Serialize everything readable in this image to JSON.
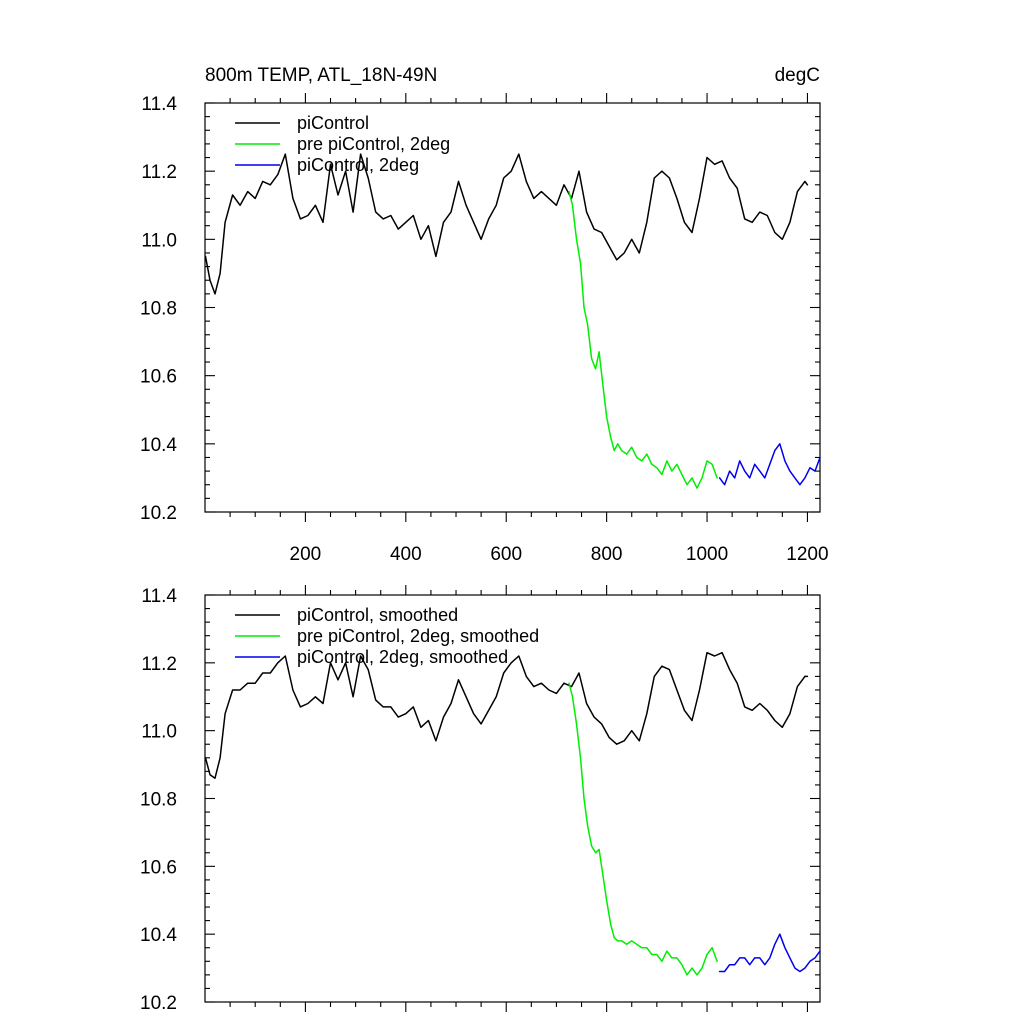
{
  "chart_data": [
    {
      "type": "line",
      "title": "800m TEMP, ATL_18N-49N",
      "units": "degC",
      "xlim": [
        0,
        1225
      ],
      "ylim": [
        10.2,
        11.4
      ],
      "x_ticks": [
        200,
        400,
        600,
        800,
        1000,
        1200
      ],
      "x_tick_labels": [
        "200",
        "400",
        "600",
        "800",
        "1000",
        "1200"
      ],
      "y_ticks": [
        10.2,
        10.4,
        10.6,
        10.8,
        11.0,
        11.2,
        11.4
      ],
      "y_tick_labels": [
        "10.2",
        "10.4",
        "10.6",
        "10.8",
        "11.0",
        "11.2",
        "11.4"
      ],
      "legend_position": "top-left",
      "grid": false,
      "series": [
        {
          "name": "piControl",
          "color": "#000000",
          "x": [
            1,
            10,
            20,
            30,
            40,
            55,
            70,
            85,
            100,
            115,
            130,
            145,
            160,
            175,
            190,
            205,
            220,
            235,
            250,
            265,
            280,
            295,
            310,
            325,
            340,
            355,
            370,
            385,
            400,
            415,
            430,
            445,
            460,
            475,
            490,
            505,
            520,
            535,
            550,
            565,
            580,
            595,
            610,
            625,
            640,
            655,
            670,
            685,
            700,
            715,
            730,
            745,
            760,
            775,
            790,
            805,
            820,
            835,
            850,
            865,
            880,
            895,
            910,
            925,
            940,
            955,
            970,
            985,
            1000,
            1015,
            1030,
            1045,
            1060,
            1075,
            1090,
            1105,
            1120,
            1135,
            1150,
            1165,
            1180,
            1195,
            1200
          ],
          "y": [
            10.95,
            10.88,
            10.84,
            10.9,
            11.05,
            11.13,
            11.1,
            11.14,
            11.12,
            11.17,
            11.16,
            11.19,
            11.25,
            11.12,
            11.06,
            11.07,
            11.1,
            11.05,
            11.22,
            11.13,
            11.2,
            11.08,
            11.25,
            11.18,
            11.08,
            11.06,
            11.07,
            11.03,
            11.05,
            11.07,
            11.0,
            11.04,
            10.95,
            11.05,
            11.08,
            11.17,
            11.1,
            11.05,
            11.0,
            11.06,
            11.1,
            11.18,
            11.2,
            11.25,
            11.17,
            11.12,
            11.14,
            11.12,
            11.1,
            11.16,
            11.12,
            11.2,
            11.08,
            11.03,
            11.02,
            10.98,
            10.94,
            10.96,
            11.0,
            10.96,
            11.05,
            11.18,
            11.2,
            11.18,
            11.12,
            11.05,
            11.02,
            11.12,
            11.24,
            11.22,
            11.23,
            11.18,
            11.15,
            11.06,
            11.05,
            11.08,
            11.07,
            11.02,
            11.0,
            11.05,
            11.14,
            11.17,
            11.16
          ]
        },
        {
          "name": "pre piControl, 2deg",
          "color": "#00ee00",
          "x": [
            725,
            732,
            740,
            748,
            755,
            762,
            770,
            778,
            785,
            792,
            800,
            808,
            815,
            822,
            830,
            840,
            850,
            860,
            870,
            880,
            890,
            900,
            910,
            920,
            930,
            940,
            950,
            960,
            970,
            980,
            990,
            1000,
            1010,
            1020
          ],
          "y": [
            11.14,
            11.1,
            11.0,
            10.93,
            10.8,
            10.75,
            10.65,
            10.62,
            10.67,
            10.58,
            10.48,
            10.42,
            10.38,
            10.4,
            10.38,
            10.37,
            10.39,
            10.36,
            10.35,
            10.37,
            10.34,
            10.33,
            10.31,
            10.35,
            10.32,
            10.34,
            10.31,
            10.28,
            10.3,
            10.27,
            10.3,
            10.35,
            10.34,
            10.3
          ]
        },
        {
          "name": "piControl, 2deg",
          "color": "#0000ee",
          "x": [
            1025,
            1035,
            1045,
            1055,
            1065,
            1075,
            1085,
            1095,
            1105,
            1115,
            1125,
            1135,
            1145,
            1155,
            1165,
            1175,
            1185,
            1195,
            1205,
            1215,
            1225
          ],
          "y": [
            10.3,
            10.28,
            10.32,
            10.3,
            10.35,
            10.32,
            10.3,
            10.34,
            10.32,
            10.3,
            10.34,
            10.38,
            10.4,
            10.35,
            10.32,
            10.3,
            10.28,
            10.3,
            10.33,
            10.32,
            10.36
          ]
        }
      ]
    },
    {
      "type": "line",
      "title": "",
      "units": "",
      "xlim": [
        0,
        1225
      ],
      "ylim": [
        10.2,
        11.4
      ],
      "x_ticks": [
        200,
        400,
        600,
        800,
        1000,
        1200
      ],
      "x_tick_labels": [],
      "y_ticks": [
        10.2,
        10.4,
        10.6,
        10.8,
        11.0,
        11.2,
        11.4
      ],
      "y_tick_labels": [
        "10.2",
        "10.4",
        "10.6",
        "10.8",
        "11.0",
        "11.2",
        "11.4"
      ],
      "legend_position": "top-left",
      "grid": false,
      "series": [
        {
          "name": "piControl, smoothed",
          "color": "#000000",
          "x": [
            1,
            10,
            20,
            30,
            40,
            55,
            70,
            85,
            100,
            115,
            130,
            145,
            160,
            175,
            190,
            205,
            220,
            235,
            250,
            265,
            280,
            295,
            310,
            325,
            340,
            355,
            370,
            385,
            400,
            415,
            430,
            445,
            460,
            475,
            490,
            505,
            520,
            535,
            550,
            565,
            580,
            595,
            610,
            625,
            640,
            655,
            670,
            685,
            700,
            715,
            730,
            745,
            760,
            775,
            790,
            805,
            820,
            835,
            850,
            865,
            880,
            895,
            910,
            925,
            940,
            955,
            970,
            985,
            1000,
            1015,
            1030,
            1045,
            1060,
            1075,
            1090,
            1105,
            1120,
            1135,
            1150,
            1165,
            1180,
            1195,
            1200
          ],
          "y": [
            10.92,
            10.87,
            10.86,
            10.92,
            11.05,
            11.12,
            11.12,
            11.14,
            11.14,
            11.17,
            11.17,
            11.2,
            11.22,
            11.12,
            11.07,
            11.08,
            11.1,
            11.08,
            11.2,
            11.15,
            11.2,
            11.1,
            11.22,
            11.18,
            11.09,
            11.07,
            11.07,
            11.04,
            11.05,
            11.07,
            11.01,
            11.03,
            10.97,
            11.04,
            11.08,
            11.15,
            11.1,
            11.05,
            11.02,
            11.06,
            11.1,
            11.17,
            11.2,
            11.22,
            11.16,
            11.13,
            11.14,
            11.12,
            11.11,
            11.14,
            11.13,
            11.17,
            11.08,
            11.04,
            11.02,
            10.98,
            10.96,
            10.97,
            11.0,
            10.97,
            11.05,
            11.16,
            11.19,
            11.18,
            11.12,
            11.06,
            11.03,
            11.12,
            11.23,
            11.22,
            11.23,
            11.18,
            11.14,
            11.07,
            11.06,
            11.08,
            11.06,
            11.03,
            11.01,
            11.05,
            11.13,
            11.16,
            11.16
          ]
        },
        {
          "name": "pre piControl, 2deg, smoothed",
          "color": "#00ee00",
          "x": [
            725,
            732,
            740,
            748,
            755,
            762,
            770,
            778,
            785,
            792,
            800,
            808,
            815,
            822,
            830,
            840,
            850,
            860,
            870,
            880,
            890,
            900,
            910,
            920,
            930,
            940,
            950,
            960,
            970,
            980,
            990,
            1000,
            1010,
            1020
          ],
          "y": [
            11.14,
            11.1,
            11.02,
            10.92,
            10.8,
            10.72,
            10.66,
            10.64,
            10.65,
            10.58,
            10.5,
            10.43,
            10.39,
            10.38,
            10.38,
            10.37,
            10.38,
            10.37,
            10.36,
            10.36,
            10.34,
            10.34,
            10.32,
            10.35,
            10.33,
            10.33,
            10.31,
            10.28,
            10.3,
            10.28,
            10.3,
            10.34,
            10.36,
            10.32
          ]
        },
        {
          "name": "piControl, 2deg, smoothed",
          "color": "#0000ee",
          "x": [
            1025,
            1035,
            1045,
            1055,
            1065,
            1075,
            1085,
            1095,
            1105,
            1115,
            1125,
            1135,
            1145,
            1155,
            1165,
            1175,
            1185,
            1195,
            1205,
            1215,
            1225
          ],
          "y": [
            10.29,
            10.29,
            10.31,
            10.31,
            10.33,
            10.33,
            10.31,
            10.33,
            10.33,
            10.31,
            10.33,
            10.37,
            10.4,
            10.36,
            10.33,
            10.3,
            10.29,
            10.3,
            10.32,
            10.33,
            10.35
          ]
        }
      ]
    }
  ]
}
